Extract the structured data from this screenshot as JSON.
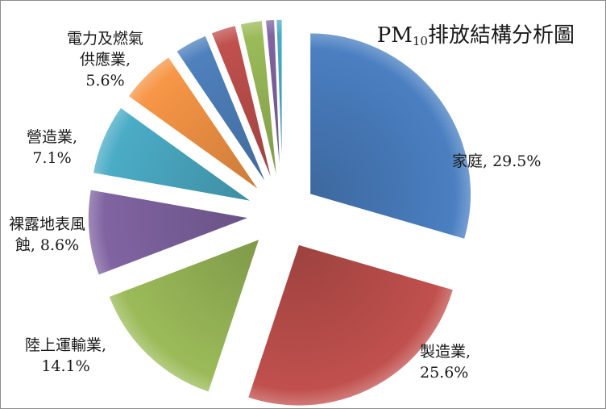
{
  "chart_data": {
    "type": "pie",
    "title_prefix": "PM",
    "title_sub": "10",
    "title_suffix": "排放結構分析圖",
    "slices": [
      {
        "label": "家庭",
        "value": 29.5,
        "color": "#4a7fc1",
        "shown": "家庭, 29.5%"
      },
      {
        "label": "製造業",
        "value": 25.6,
        "color": "#c0504d",
        "shown": "製造業, 25.6%"
      },
      {
        "label": "陸上運輸業",
        "value": 14.1,
        "color": "#9bbb59",
        "shown": "陸上運輸業, 14.1%"
      },
      {
        "label": "裸露地表風蝕",
        "value": 8.6,
        "color": "#8064a2",
        "shown": "裸露地表風蝕, 8.6%"
      },
      {
        "label": "營造業",
        "value": 7.1,
        "color": "#4bacc6",
        "shown": "營造業, 7.1%"
      },
      {
        "label": "電力及燃氣供應業",
        "value": 5.6,
        "color": "#f79646",
        "shown": "電力及燃氣供應業, 5.6%"
      },
      {
        "label": "",
        "value": 3.3,
        "color": "#4f81bd"
      },
      {
        "label": "",
        "value": 2.5,
        "color": "#c0504d"
      },
      {
        "label": "",
        "value": 2.2,
        "color": "#9bbb59"
      },
      {
        "label": "",
        "value": 0.9,
        "color": "#8064a2"
      },
      {
        "label": "",
        "value": 0.6,
        "color": "#4bacc6"
      }
    ]
  },
  "labels": {
    "home_l1": "家庭, 29.5%",
    "mfg_l1": "製造業,",
    "mfg_l2": "25.6%",
    "trans_l1": "陸上運輸業,",
    "trans_l2": "14.1%",
    "bare_l1": "裸露地表風",
    "bare_l2": "蝕, 8.6%",
    "cons_l1": "營造業,",
    "cons_l2": "7.1%",
    "power_l1": "電力及燃氣",
    "power_l2": "供應業,",
    "power_l3": "5.6%"
  }
}
